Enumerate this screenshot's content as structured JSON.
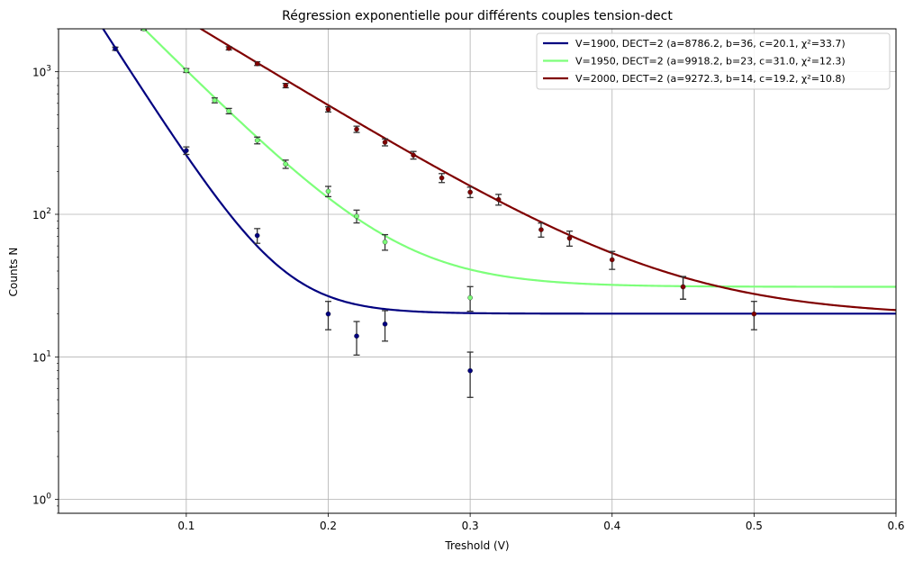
{
  "chart_data": {
    "type": "scatter",
    "title": "Régression exponentielle pour différents couples tension-dect",
    "xlabel": "Treshold (V)",
    "ylabel": "Counts N",
    "xlim": [
      0.01,
      0.6
    ],
    "ylim": [
      0.8,
      2000
    ],
    "yscale": "log",
    "grid": true,
    "legend_position": "top-right",
    "x_ticks": [
      {
        "value": 0.1,
        "label": "0.1"
      },
      {
        "value": 0.2,
        "label": "0.2"
      },
      {
        "value": 0.3,
        "label": "0.3"
      },
      {
        "value": 0.4,
        "label": "0.4"
      },
      {
        "value": 0.5,
        "label": "0.5"
      },
      {
        "value": 0.6,
        "label": "0.6"
      }
    ],
    "y_ticks": [
      {
        "value": 1,
        "base": "10",
        "exp": "0"
      },
      {
        "value": 10,
        "base": "10",
        "exp": "1"
      },
      {
        "value": 100,
        "base": "10",
        "exp": "2"
      },
      {
        "value": 1000,
        "base": "10",
        "exp": "3"
      }
    ],
    "series": [
      {
        "name": "V=1900, DECT=2 (a=8786.2, b=36, c=20.1, χ²=33.7)",
        "color": "#000080",
        "fit": {
          "a": 8786.2,
          "b": 36,
          "c": 20.1
        },
        "points": [
          {
            "x": 0.05,
            "y": 1450,
            "err": 38
          },
          {
            "x": 0.1,
            "y": 280,
            "err": 17
          },
          {
            "x": 0.15,
            "y": 71,
            "err": 8.4
          },
          {
            "x": 0.2,
            "y": 20,
            "err": 4.5
          },
          {
            "x": 0.22,
            "y": 14,
            "err": 3.7
          },
          {
            "x": 0.24,
            "y": 17,
            "err": 4.1
          },
          {
            "x": 0.3,
            "y": 8,
            "err": 2.8
          }
        ]
      },
      {
        "name": "V=1950, DECT=2 (a=9918.2, b=23, c=31.0, χ²=12.3)",
        "color": "#7dff7a",
        "fit": {
          "a": 9918.2,
          "b": 23,
          "c": 31.0
        },
        "points": [
          {
            "x": 0.07,
            "y": 2000,
            "err": 45
          },
          {
            "x": 0.1,
            "y": 1020,
            "err": 32
          },
          {
            "x": 0.12,
            "y": 630,
            "err": 25
          },
          {
            "x": 0.13,
            "y": 530,
            "err": 23
          },
          {
            "x": 0.15,
            "y": 330,
            "err": 18
          },
          {
            "x": 0.17,
            "y": 225,
            "err": 15
          },
          {
            "x": 0.2,
            "y": 145,
            "err": 12
          },
          {
            "x": 0.22,
            "y": 97,
            "err": 10
          },
          {
            "x": 0.24,
            "y": 64,
            "err": 8
          },
          {
            "x": 0.3,
            "y": 26,
            "err": 5.1
          },
          {
            "x": 0.45,
            "y": 31,
            "err": 5.6
          }
        ]
      },
      {
        "name": "V=2000, DECT=2 (a=9272.3, b=14, c=19.2, χ²=10.8)",
        "color": "#800000",
        "fit": {
          "a": 9272.3,
          "b": 14,
          "c": 19.2
        },
        "points": [
          {
            "x": 0.13,
            "y": 1460,
            "err": 38
          },
          {
            "x": 0.15,
            "y": 1140,
            "err": 34
          },
          {
            "x": 0.17,
            "y": 800,
            "err": 28
          },
          {
            "x": 0.2,
            "y": 545,
            "err": 23
          },
          {
            "x": 0.22,
            "y": 395,
            "err": 20
          },
          {
            "x": 0.24,
            "y": 320,
            "err": 18
          },
          {
            "x": 0.26,
            "y": 260,
            "err": 16
          },
          {
            "x": 0.28,
            "y": 180,
            "err": 13
          },
          {
            "x": 0.3,
            "y": 143,
            "err": 12
          },
          {
            "x": 0.32,
            "y": 127,
            "err": 11
          },
          {
            "x": 0.35,
            "y": 78,
            "err": 8.8
          },
          {
            "x": 0.37,
            "y": 68,
            "err": 8.2
          },
          {
            "x": 0.4,
            "y": 48,
            "err": 6.9
          },
          {
            "x": 0.45,
            "y": 31,
            "err": 5.6
          },
          {
            "x": 0.5,
            "y": 20,
            "err": 4.5
          }
        ]
      }
    ]
  }
}
